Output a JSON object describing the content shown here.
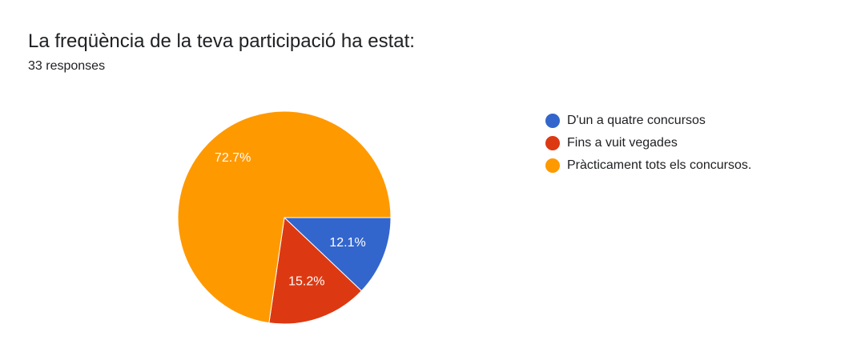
{
  "header": {
    "title": "La freqüència de la teva participació ha estat:",
    "responses": "33 responses"
  },
  "chart_data": {
    "type": "pie",
    "title": "La freqüència de la teva participació ha estat:",
    "total_responses": 33,
    "categories": [
      "D'un a quatre concursos",
      "Fins a vuit vegades",
      "Pràcticament tots els concursos."
    ],
    "values": [
      12.1,
      15.2,
      72.7
    ],
    "labels": [
      "12.1%",
      "15.2%",
      "72.7%"
    ],
    "colors": [
      "#3366cc",
      "#dc3912",
      "#ff9900"
    ],
    "legend_position": "right"
  },
  "legend": {
    "items": [
      {
        "label": "D'un a quatre concursos",
        "color": "#3366cc"
      },
      {
        "label": "Fins a vuit vegades",
        "color": "#dc3912"
      },
      {
        "label": "Pràcticament tots els concursos.",
        "color": "#ff9900"
      }
    ]
  }
}
